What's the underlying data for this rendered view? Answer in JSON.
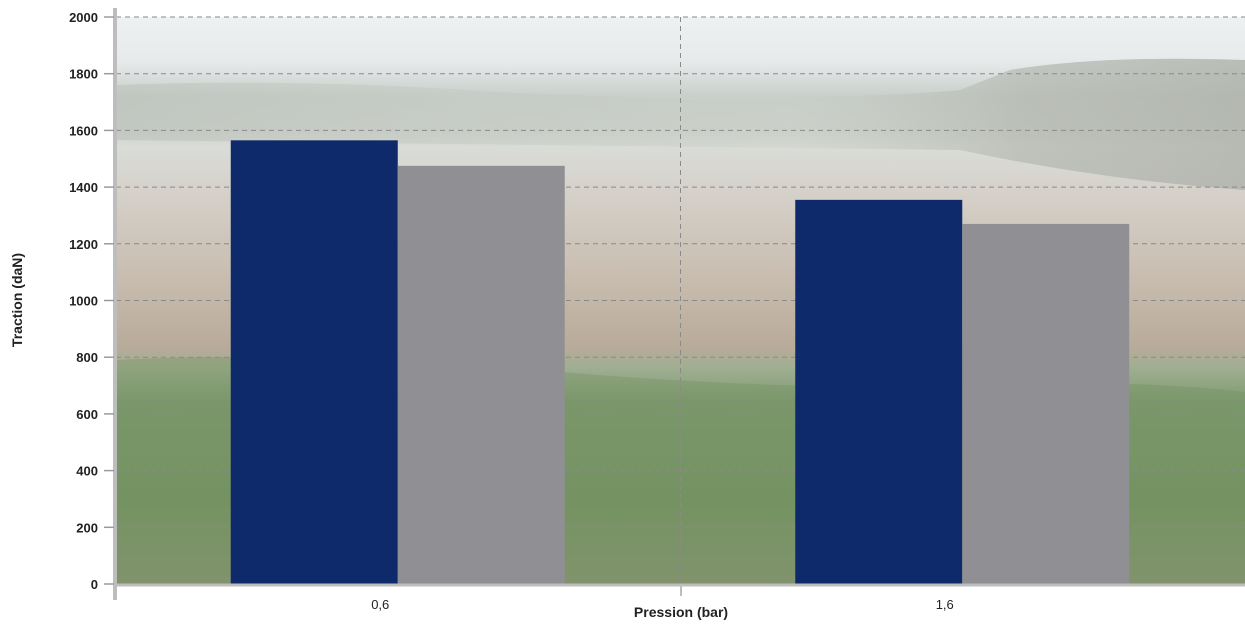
{
  "chart_data": {
    "type": "bar",
    "categories": [
      "0,6",
      "1,6"
    ],
    "series": [
      {
        "values": [
          1565,
          1355
        ],
        "color": "#0f2a6b"
      },
      {
        "values": [
          1475,
          1270
        ],
        "color": "#909094"
      }
    ],
    "xlabel": "Pression (bar)",
    "ylabel": "Traction (daN)",
    "ylim": [
      0,
      2000
    ],
    "yticks": [
      0,
      200,
      400,
      600,
      800,
      1000,
      1200,
      1400,
      1600,
      1800,
      2000
    ],
    "grid": true,
    "background": "photo of a foggy ploughed field with grass in the foreground"
  }
}
